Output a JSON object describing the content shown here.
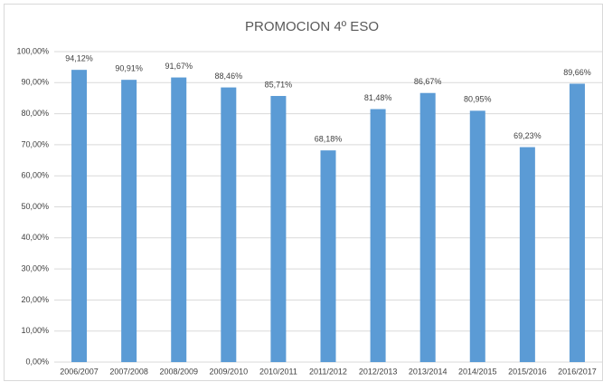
{
  "chart_data": {
    "type": "bar",
    "title": "PROMOCION 4º ESO",
    "categories": [
      "2006/2007",
      "2007/2008",
      "2008/2009",
      "2009/2010",
      "2010/2011",
      "2011/2012",
      "2012/2013",
      "2013/2014",
      "2014/2015",
      "2015/2016",
      "2016/2017"
    ],
    "values": [
      94.12,
      90.91,
      91.67,
      88.46,
      85.71,
      68.18,
      81.48,
      86.67,
      80.95,
      69.23,
      89.66
    ],
    "value_labels": [
      "94,12%",
      "90,91%",
      "91,67%",
      "88,46%",
      "85,71%",
      "68,18%",
      "81,48%",
      "86,67%",
      "80,95%",
      "69,23%",
      "89,66%"
    ],
    "color": "#5b9bd5",
    "ylim": [
      0,
      100
    ],
    "yticks": [
      {
        "value": 0,
        "label": "0,00%"
      },
      {
        "value": 10,
        "label": "10,00%"
      },
      {
        "value": 20,
        "label": "20,00%"
      },
      {
        "value": 30,
        "label": "30,00%"
      },
      {
        "value": 40,
        "label": "40,00%"
      },
      {
        "value": 50,
        "label": "50,00%"
      },
      {
        "value": 60,
        "label": "60,00%"
      },
      {
        "value": 70,
        "label": "70,00%"
      },
      {
        "value": 80,
        "label": "80,00%"
      },
      {
        "value": 90,
        "label": "90,00%"
      },
      {
        "value": 100,
        "label": "100,00%"
      }
    ],
    "grid": true
  }
}
